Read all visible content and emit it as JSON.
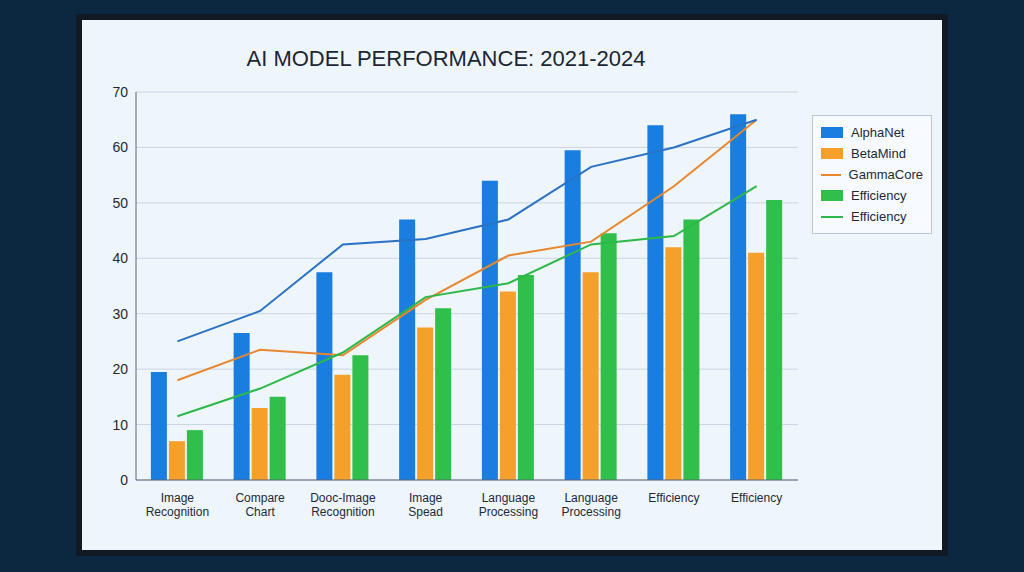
{
  "chart_data": {
    "type": "bar",
    "title": "AI MODEL PERFORMANCE: 2021-2024",
    "categories": [
      "Image Recognition",
      "Compare Chart",
      "Dooc-Image Recognition",
      "Image Spead",
      "Language Processing",
      "Language Processing",
      "Efficiency",
      "Efficiency"
    ],
    "ylim": [
      0,
      70
    ],
    "yticks": [
      0,
      10,
      20,
      30,
      40,
      50,
      60,
      70
    ],
    "grid": true,
    "legend": "upper right",
    "series": [
      {
        "name": "AlphaNet",
        "type": "bar",
        "color": "#1a7de0",
        "values": [
          19.5,
          26.5,
          37.5,
          47,
          54,
          59.5,
          64,
          66
        ]
      },
      {
        "name": "BetaMind",
        "type": "bar",
        "color": "#f5a02a",
        "values": [
          7,
          13,
          19,
          27.5,
          34,
          37.5,
          42,
          41
        ]
      },
      {
        "name": "GammaCore",
        "type": "line",
        "color": "#e8872e",
        "values": [
          18,
          23.5,
          22.5,
          32.5,
          40.5,
          43,
          53,
          65
        ]
      },
      {
        "name": "Efficiency",
        "type": "bar",
        "color": "#2fbf4a",
        "values": [
          9,
          15,
          22.5,
          31,
          37,
          44.5,
          47,
          50.5
        ]
      },
      {
        "name": "Efficiency",
        "type": "line",
        "color": "#2db84a",
        "values": [
          11.5,
          16.5,
          23,
          33,
          35.5,
          42.5,
          44,
          53
        ]
      },
      {
        "type": "line",
        "color": "#2a72c4",
        "values": [
          25,
          30.5,
          42.5,
          43.5,
          47,
          56.5,
          60,
          65
        ]
      }
    ]
  }
}
